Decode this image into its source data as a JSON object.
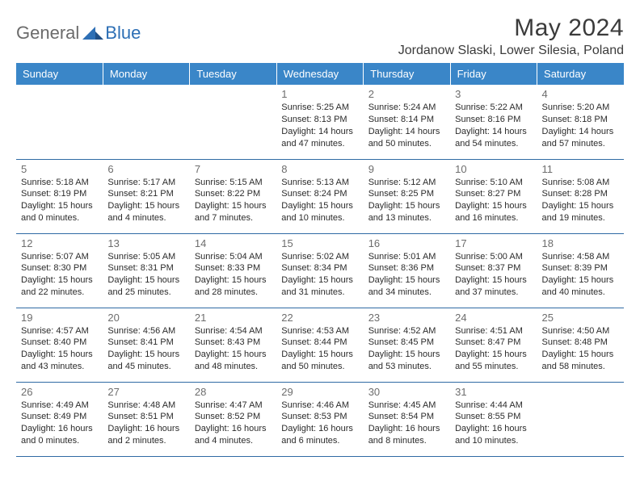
{
  "brand": {
    "part1": "General",
    "part2": "Blue"
  },
  "title": "May 2024",
  "subtitle": "Jordanow Slaski, Lower Silesia, Poland",
  "colors": {
    "header_bg": "#3a86c8",
    "header_text": "#ffffff",
    "rule": "#2f6aa4",
    "daynum": "#6d6d6d",
    "body_text": "#2b2b2b",
    "logo_gray": "#6b6b6b",
    "logo_blue": "#2d6fb5",
    "background": "#ffffff"
  },
  "typography": {
    "title_fontsize": 30,
    "subtitle_fontsize": 16,
    "dayheader_fontsize": 13,
    "daynum_fontsize": 13,
    "info_fontsize": 11
  },
  "day_headers": [
    "Sunday",
    "Monday",
    "Tuesday",
    "Wednesday",
    "Thursday",
    "Friday",
    "Saturday"
  ],
  "weeks": [
    [
      null,
      null,
      null,
      {
        "n": "1",
        "sr": "Sunrise: 5:25 AM",
        "ss": "Sunset: 8:13 PM",
        "d1": "Daylight: 14 hours",
        "d2": "and 47 minutes."
      },
      {
        "n": "2",
        "sr": "Sunrise: 5:24 AM",
        "ss": "Sunset: 8:14 PM",
        "d1": "Daylight: 14 hours",
        "d2": "and 50 minutes."
      },
      {
        "n": "3",
        "sr": "Sunrise: 5:22 AM",
        "ss": "Sunset: 8:16 PM",
        "d1": "Daylight: 14 hours",
        "d2": "and 54 minutes."
      },
      {
        "n": "4",
        "sr": "Sunrise: 5:20 AM",
        "ss": "Sunset: 8:18 PM",
        "d1": "Daylight: 14 hours",
        "d2": "and 57 minutes."
      }
    ],
    [
      {
        "n": "5",
        "sr": "Sunrise: 5:18 AM",
        "ss": "Sunset: 8:19 PM",
        "d1": "Daylight: 15 hours",
        "d2": "and 0 minutes."
      },
      {
        "n": "6",
        "sr": "Sunrise: 5:17 AM",
        "ss": "Sunset: 8:21 PM",
        "d1": "Daylight: 15 hours",
        "d2": "and 4 minutes."
      },
      {
        "n": "7",
        "sr": "Sunrise: 5:15 AM",
        "ss": "Sunset: 8:22 PM",
        "d1": "Daylight: 15 hours",
        "d2": "and 7 minutes."
      },
      {
        "n": "8",
        "sr": "Sunrise: 5:13 AM",
        "ss": "Sunset: 8:24 PM",
        "d1": "Daylight: 15 hours",
        "d2": "and 10 minutes."
      },
      {
        "n": "9",
        "sr": "Sunrise: 5:12 AM",
        "ss": "Sunset: 8:25 PM",
        "d1": "Daylight: 15 hours",
        "d2": "and 13 minutes."
      },
      {
        "n": "10",
        "sr": "Sunrise: 5:10 AM",
        "ss": "Sunset: 8:27 PM",
        "d1": "Daylight: 15 hours",
        "d2": "and 16 minutes."
      },
      {
        "n": "11",
        "sr": "Sunrise: 5:08 AM",
        "ss": "Sunset: 8:28 PM",
        "d1": "Daylight: 15 hours",
        "d2": "and 19 minutes."
      }
    ],
    [
      {
        "n": "12",
        "sr": "Sunrise: 5:07 AM",
        "ss": "Sunset: 8:30 PM",
        "d1": "Daylight: 15 hours",
        "d2": "and 22 minutes."
      },
      {
        "n": "13",
        "sr": "Sunrise: 5:05 AM",
        "ss": "Sunset: 8:31 PM",
        "d1": "Daylight: 15 hours",
        "d2": "and 25 minutes."
      },
      {
        "n": "14",
        "sr": "Sunrise: 5:04 AM",
        "ss": "Sunset: 8:33 PM",
        "d1": "Daylight: 15 hours",
        "d2": "and 28 minutes."
      },
      {
        "n": "15",
        "sr": "Sunrise: 5:02 AM",
        "ss": "Sunset: 8:34 PM",
        "d1": "Daylight: 15 hours",
        "d2": "and 31 minutes."
      },
      {
        "n": "16",
        "sr": "Sunrise: 5:01 AM",
        "ss": "Sunset: 8:36 PM",
        "d1": "Daylight: 15 hours",
        "d2": "and 34 minutes."
      },
      {
        "n": "17",
        "sr": "Sunrise: 5:00 AM",
        "ss": "Sunset: 8:37 PM",
        "d1": "Daylight: 15 hours",
        "d2": "and 37 minutes."
      },
      {
        "n": "18",
        "sr": "Sunrise: 4:58 AM",
        "ss": "Sunset: 8:39 PM",
        "d1": "Daylight: 15 hours",
        "d2": "and 40 minutes."
      }
    ],
    [
      {
        "n": "19",
        "sr": "Sunrise: 4:57 AM",
        "ss": "Sunset: 8:40 PM",
        "d1": "Daylight: 15 hours",
        "d2": "and 43 minutes."
      },
      {
        "n": "20",
        "sr": "Sunrise: 4:56 AM",
        "ss": "Sunset: 8:41 PM",
        "d1": "Daylight: 15 hours",
        "d2": "and 45 minutes."
      },
      {
        "n": "21",
        "sr": "Sunrise: 4:54 AM",
        "ss": "Sunset: 8:43 PM",
        "d1": "Daylight: 15 hours",
        "d2": "and 48 minutes."
      },
      {
        "n": "22",
        "sr": "Sunrise: 4:53 AM",
        "ss": "Sunset: 8:44 PM",
        "d1": "Daylight: 15 hours",
        "d2": "and 50 minutes."
      },
      {
        "n": "23",
        "sr": "Sunrise: 4:52 AM",
        "ss": "Sunset: 8:45 PM",
        "d1": "Daylight: 15 hours",
        "d2": "and 53 minutes."
      },
      {
        "n": "24",
        "sr": "Sunrise: 4:51 AM",
        "ss": "Sunset: 8:47 PM",
        "d1": "Daylight: 15 hours",
        "d2": "and 55 minutes."
      },
      {
        "n": "25",
        "sr": "Sunrise: 4:50 AM",
        "ss": "Sunset: 8:48 PM",
        "d1": "Daylight: 15 hours",
        "d2": "and 58 minutes."
      }
    ],
    [
      {
        "n": "26",
        "sr": "Sunrise: 4:49 AM",
        "ss": "Sunset: 8:49 PM",
        "d1": "Daylight: 16 hours",
        "d2": "and 0 minutes."
      },
      {
        "n": "27",
        "sr": "Sunrise: 4:48 AM",
        "ss": "Sunset: 8:51 PM",
        "d1": "Daylight: 16 hours",
        "d2": "and 2 minutes."
      },
      {
        "n": "28",
        "sr": "Sunrise: 4:47 AM",
        "ss": "Sunset: 8:52 PM",
        "d1": "Daylight: 16 hours",
        "d2": "and 4 minutes."
      },
      {
        "n": "29",
        "sr": "Sunrise: 4:46 AM",
        "ss": "Sunset: 8:53 PM",
        "d1": "Daylight: 16 hours",
        "d2": "and 6 minutes."
      },
      {
        "n": "30",
        "sr": "Sunrise: 4:45 AM",
        "ss": "Sunset: 8:54 PM",
        "d1": "Daylight: 16 hours",
        "d2": "and 8 minutes."
      },
      {
        "n": "31",
        "sr": "Sunrise: 4:44 AM",
        "ss": "Sunset: 8:55 PM",
        "d1": "Daylight: 16 hours",
        "d2": "and 10 minutes."
      },
      null
    ]
  ]
}
